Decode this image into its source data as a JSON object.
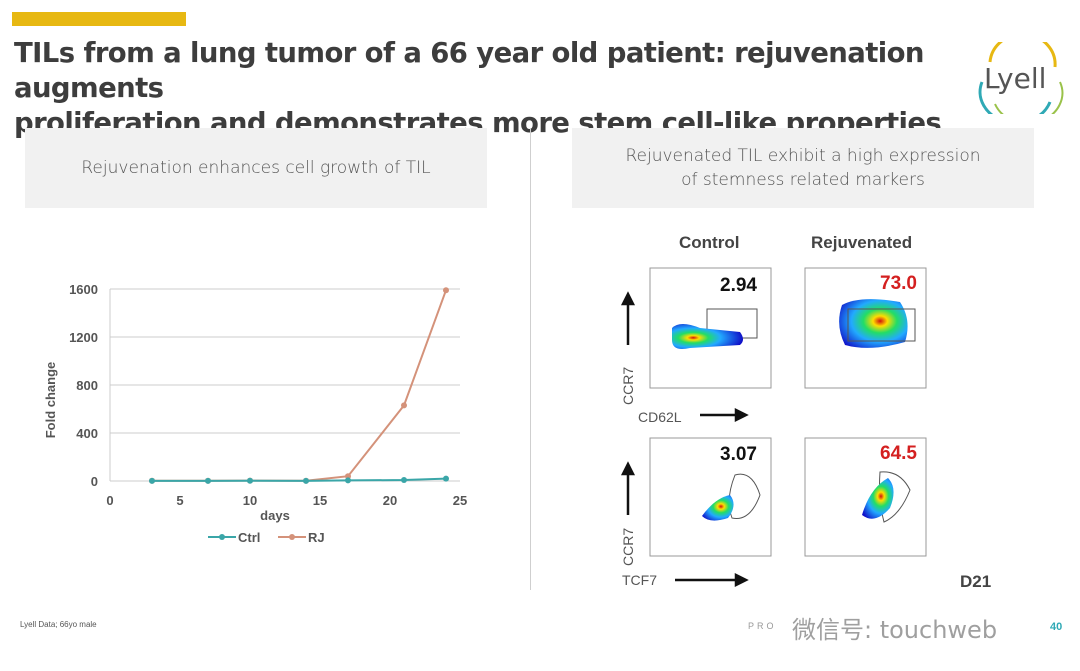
{
  "slide": {
    "title_lines": [
      "TILs from a lung tumor of a 66 year old patient: rejuvenation augments",
      "proliferation and demonstrates more stem cell-like properties"
    ],
    "logo": "Lyell",
    "accent_color": "#e7b812",
    "left_panel": {
      "caption": "Rejuvenation enhances cell growth of TIL"
    },
    "right_panel": {
      "caption_lines": [
        "Rejuvenated TIL exhibit a high expression",
        "of stemness related markers"
      ],
      "col_headers": [
        "Control",
        "Rejuvenated"
      ],
      "row1": {
        "y_label": "CCR7",
        "x_label": "CD62L",
        "control": "2.94",
        "rejuvenated": "73.0"
      },
      "row2": {
        "y_label": "CCR7",
        "x_label": "TCF7",
        "control": "3.07",
        "rejuvenated": "64.5"
      },
      "timepoint": "D21"
    },
    "footer": {
      "note": "Lyell Data; 66yo male",
      "confidential": "PRO",
      "watermark": "微信号: touchweb",
      "page": "40"
    }
  },
  "chart_data": {
    "type": "line",
    "title": "",
    "xlabel": "days",
    "ylabel": "Fold change",
    "xlim": [
      0,
      25
    ],
    "ylim": [
      0,
      1600
    ],
    "xticks": [
      0,
      5,
      10,
      15,
      20,
      25
    ],
    "yticks": [
      0,
      400,
      800,
      1200,
      1600
    ],
    "grid": "horizontal",
    "legend": "bottom",
    "series": [
      {
        "name": "Ctrl",
        "color": "#3aa6a8",
        "x": [
          3,
          7,
          10,
          14,
          17,
          21,
          24
        ],
        "y": [
          1,
          1,
          2,
          1,
          5,
          8,
          20
        ]
      },
      {
        "name": "RJ",
        "color": "#d4927a",
        "x": [
          3,
          7,
          10,
          14,
          17,
          21,
          24
        ],
        "y": [
          2,
          2,
          3,
          2,
          40,
          630,
          1590
        ]
      }
    ]
  }
}
